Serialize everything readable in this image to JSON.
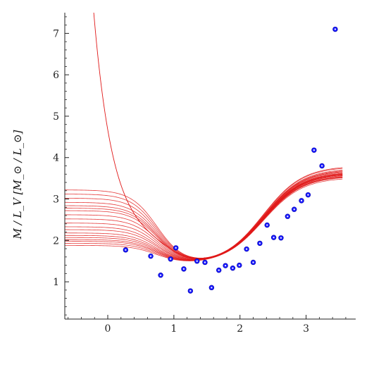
{
  "chart_data": {
    "type": "scatter",
    "title": "",
    "xlabel": "",
    "ylabel": "M / L_V [M_⊙ / L_⊙]",
    "xlim": [
      -0.65,
      3.75
    ],
    "ylim": [
      0.1,
      7.5
    ],
    "grid": false,
    "x_ticks": [
      0,
      1,
      2,
      3
    ],
    "y_ticks": [
      1,
      2,
      3,
      4,
      5,
      6,
      7
    ],
    "colors": {
      "points": "#1a1aff",
      "curves": "#e01818",
      "axes": "#222222"
    },
    "points": {
      "x": [
        0.27,
        0.65,
        0.8,
        0.95,
        1.03,
        1.15,
        1.25,
        1.35,
        1.47,
        1.57,
        1.68,
        1.78,
        1.89,
        1.99,
        2.1,
        2.2,
        2.3,
        2.41,
        2.51,
        2.62,
        2.72,
        2.82,
        2.93,
        3.03,
        3.12,
        3.24,
        3.44
      ],
      "y": [
        1.77,
        1.62,
        1.16,
        1.55,
        1.82,
        1.31,
        0.78,
        1.5,
        1.47,
        0.86,
        1.28,
        1.39,
        1.33,
        1.4,
        1.79,
        1.47,
        1.93,
        2.37,
        2.07,
        2.06,
        2.58,
        2.75,
        2.96,
        3.1,
        4.18,
        3.8,
        7.1
      ]
    },
    "steep_curve": {
      "x0": 0.18,
      "a": 1.45,
      "b": 1.05,
      "x_start": -0.24
    },
    "curves": {
      "x_end": 3.55,
      "baselines": [
        1.88,
        1.93,
        1.98,
        2.02,
        2.07,
        2.12,
        2.18,
        2.26,
        2.33,
        2.42,
        2.52,
        2.62,
        2.72,
        2.78,
        2.84,
        2.92,
        3.02,
        3.12,
        3.22
      ],
      "ends": [
        3.52,
        3.56,
        3.6,
        3.64,
        3.58,
        3.68,
        3.62,
        3.7,
        3.66,
        3.74,
        3.55,
        3.78,
        3.6,
        3.72,
        3.65,
        3.8,
        3.57,
        3.7,
        3.63
      ]
    }
  }
}
